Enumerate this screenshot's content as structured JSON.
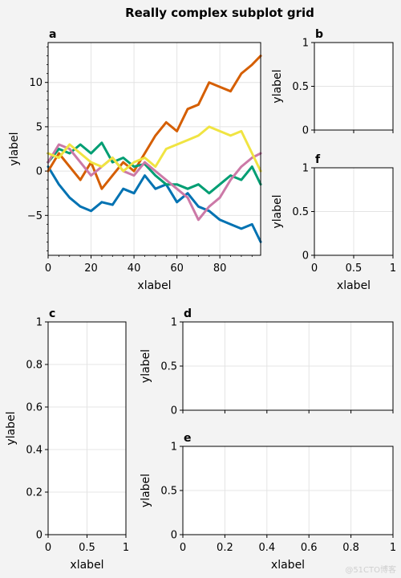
{
  "figure": {
    "title": "Really complex subplot grid",
    "watermark": "@51CTO博客"
  },
  "colors": {
    "background": "#f3f3f3",
    "series": [
      "#0072b2",
      "#d55e00",
      "#009e73",
      "#cc79a7",
      "#f0e442"
    ]
  },
  "chart_data": [
    {
      "panel": "a",
      "type": "line",
      "xlabel": "xlabel",
      "ylabel": "ylabel",
      "xlim": [
        0,
        99
      ],
      "ylim": [
        -9.5,
        14.5
      ],
      "xticks": [
        0,
        20,
        40,
        60,
        80
      ],
      "yticks": [
        -5,
        0,
        5,
        10
      ],
      "grid": true,
      "series": [
        {
          "color": "#0072b2",
          "points": [
            [
              0,
              0.5
            ],
            [
              5,
              -1.5
            ],
            [
              10,
              -3
            ],
            [
              15,
              -4
            ],
            [
              20,
              -4.5
            ],
            [
              25,
              -3.5
            ],
            [
              30,
              -3.8
            ],
            [
              35,
              -2
            ],
            [
              40,
              -2.5
            ],
            [
              45,
              -0.5
            ],
            [
              50,
              -2
            ],
            [
              55,
              -1.5
            ],
            [
              60,
              -3.5
            ],
            [
              65,
              -2.5
            ],
            [
              70,
              -4
            ],
            [
              75,
              -4.5
            ],
            [
              80,
              -5.5
            ],
            [
              85,
              -6
            ],
            [
              90,
              -6.5
            ],
            [
              95,
              -6
            ],
            [
              99,
              -8
            ]
          ]
        },
        {
          "color": "#d55e00",
          "points": [
            [
              0,
              0
            ],
            [
              5,
              2
            ],
            [
              10,
              0.5
            ],
            [
              15,
              -1
            ],
            [
              20,
              1
            ],
            [
              25,
              -2
            ],
            [
              30,
              -0.5
            ],
            [
              35,
              1
            ],
            [
              40,
              0
            ],
            [
              45,
              2
            ],
            [
              50,
              4
            ],
            [
              55,
              5.5
            ],
            [
              60,
              4.5
            ],
            [
              65,
              7
            ],
            [
              70,
              7.5
            ],
            [
              75,
              10
            ],
            [
              80,
              9.5
            ],
            [
              85,
              9
            ],
            [
              90,
              11
            ],
            [
              95,
              12
            ],
            [
              99,
              13
            ]
          ]
        },
        {
          "color": "#009e73",
          "points": [
            [
              0,
              1
            ],
            [
              5,
              2.5
            ],
            [
              10,
              2
            ],
            [
              15,
              3
            ],
            [
              20,
              2
            ],
            [
              25,
              3.2
            ],
            [
              30,
              1
            ],
            [
              35,
              1.5
            ],
            [
              40,
              0.5
            ],
            [
              45,
              0.8
            ],
            [
              50,
              -0.5
            ],
            [
              55,
              -1.5
            ],
            [
              60,
              -1.5
            ],
            [
              65,
              -2
            ],
            [
              70,
              -1.5
            ],
            [
              75,
              -2.5
            ],
            [
              80,
              -1.5
            ],
            [
              85,
              -0.5
            ],
            [
              90,
              -1
            ],
            [
              95,
              0.5
            ],
            [
              99,
              -1.5
            ]
          ]
        },
        {
          "color": "#cc79a7",
          "points": [
            [
              0,
              1
            ],
            [
              5,
              3
            ],
            [
              10,
              2.5
            ],
            [
              15,
              1
            ],
            [
              20,
              -0.5
            ],
            [
              25,
              0.5
            ],
            [
              30,
              1.5
            ],
            [
              35,
              0
            ],
            [
              40,
              -0.5
            ],
            [
              45,
              1
            ],
            [
              50,
              0
            ],
            [
              55,
              -1
            ],
            [
              60,
              -2
            ],
            [
              65,
              -3
            ],
            [
              70,
              -5.5
            ],
            [
              75,
              -4
            ],
            [
              80,
              -3
            ],
            [
              85,
              -1
            ],
            [
              90,
              0.5
            ],
            [
              95,
              1.5
            ],
            [
              99,
              2
            ]
          ]
        },
        {
          "color": "#f0e442",
          "points": [
            [
              0,
              2
            ],
            [
              5,
              1.5
            ],
            [
              10,
              3
            ],
            [
              15,
              2
            ],
            [
              20,
              1
            ],
            [
              25,
              0.5
            ],
            [
              30,
              1.5
            ],
            [
              35,
              0
            ],
            [
              40,
              1
            ],
            [
              45,
              1.5
            ],
            [
              50,
              0.5
            ],
            [
              55,
              2.5
            ],
            [
              60,
              3
            ],
            [
              65,
              3.5
            ],
            [
              70,
              4
            ],
            [
              75,
              5
            ],
            [
              80,
              4.5
            ],
            [
              85,
              4
            ],
            [
              90,
              4.5
            ],
            [
              95,
              2
            ],
            [
              99,
              0
            ]
          ]
        }
      ]
    },
    {
      "panel": "b",
      "type": "line",
      "xlabel": "",
      "ylabel": "ylabel",
      "xlim": [
        0,
        1
      ],
      "ylim": [
        0,
        1
      ],
      "xticks": [],
      "yticks": [
        "0",
        "0.5",
        "1"
      ],
      "grid": true,
      "series": []
    },
    {
      "panel": "f",
      "type": "line",
      "xlabel": "xlabel",
      "ylabel": "ylabel",
      "xlim": [
        0,
        1
      ],
      "ylim": [
        0,
        1
      ],
      "xticks": [
        "0",
        "0.5",
        "1"
      ],
      "yticks": [
        "0",
        "0.5",
        "1"
      ],
      "grid": true,
      "series": []
    },
    {
      "panel": "c",
      "type": "line",
      "xlabel": "xlabel",
      "ylabel": "ylabel",
      "xlim": [
        0,
        1
      ],
      "ylim": [
        0,
        1
      ],
      "xticks": [
        "0",
        "0.5",
        "1"
      ],
      "yticks": [
        "0",
        "0.2",
        "0.4",
        "0.6",
        "0.8",
        "1"
      ],
      "grid": true,
      "series": []
    },
    {
      "panel": "d",
      "type": "line",
      "xlabel": "",
      "ylabel": "ylabel",
      "xlim": [
        0,
        1
      ],
      "ylim": [
        0,
        1
      ],
      "xticks": [],
      "yticks": [
        "0",
        "0.5",
        "1"
      ],
      "grid": true,
      "series": []
    },
    {
      "panel": "e",
      "type": "line",
      "xlabel": "xlabel",
      "ylabel": "ylabel",
      "xlim": [
        0,
        1
      ],
      "ylim": [
        0,
        1
      ],
      "xticks": [
        "0",
        "0.2",
        "0.4",
        "0.6",
        "0.8",
        "1"
      ],
      "yticks": [
        "0",
        "0.5",
        "1"
      ],
      "grid": true,
      "series": []
    }
  ]
}
